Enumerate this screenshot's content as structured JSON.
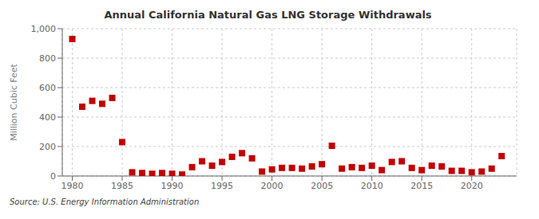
{
  "chart_data": {
    "type": "scatter",
    "title": "Annual California Natural Gas LNG Storage Withdrawals",
    "ylabel": "Million Cubic Feet",
    "annotations": [
      "Source: U.S. Energy Information Administration"
    ],
    "x": [
      1980,
      1981,
      1982,
      1983,
      1984,
      1985,
      1986,
      1987,
      1988,
      1989,
      1990,
      1991,
      1992,
      1993,
      1994,
      1995,
      1996,
      1997,
      1998,
      1999,
      2000,
      2001,
      2002,
      2003,
      2004,
      2005,
      2006,
      2007,
      2008,
      2009,
      2010,
      2011,
      2012,
      2013,
      2014,
      2015,
      2016,
      2017,
      2018,
      2019,
      2020,
      2021,
      2022,
      2023
    ],
    "values": [
      930,
      470,
      510,
      490,
      530,
      230,
      25,
      20,
      15,
      20,
      15,
      10,
      60,
      100,
      70,
      95,
      130,
      155,
      120,
      30,
      45,
      55,
      55,
      50,
      65,
      80,
      205,
      50,
      60,
      55,
      70,
      40,
      95,
      100,
      55,
      40,
      70,
      65,
      35,
      35,
      25,
      30,
      50,
      135
    ],
    "color": "#c00000",
    "marker": "square",
    "grid": true,
    "xlim": [
      1979.0,
      2024.5
    ],
    "xticks": [
      1980,
      1985,
      1990,
      1995,
      2000,
      2005,
      2010,
      2015,
      2020
    ],
    "ylim": [
      0,
      1000
    ],
    "yticks": [
      0,
      200,
      400,
      600,
      800,
      {
        "value": 1000,
        "label": "1,000"
      }
    ]
  }
}
